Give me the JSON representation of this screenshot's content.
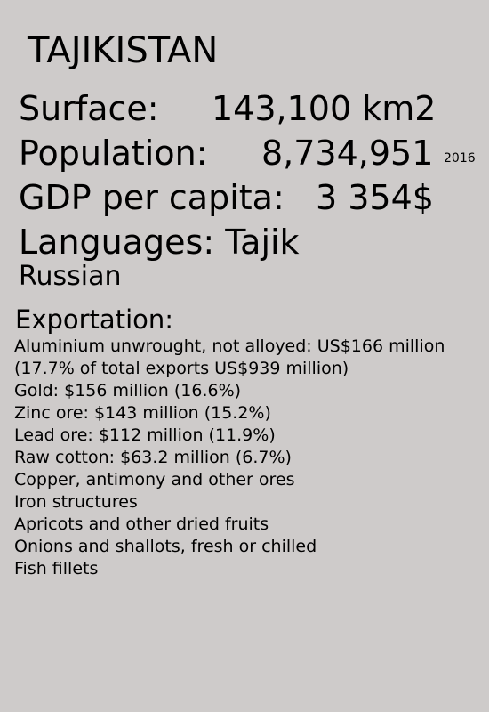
{
  "country": "TAJIKISTAN",
  "facts": {
    "surface": {
      "label": "Surface:",
      "value": "143,100 km2"
    },
    "population": {
      "label": "Population:",
      "value": "8,734,951",
      "year": "2016"
    },
    "gdp": {
      "label": "GDP per capita:",
      "value": "3 354$"
    },
    "languages": {
      "label": "Languages:",
      "items": [
        "Tajik",
        "Russian"
      ]
    }
  },
  "exports": {
    "heading": "Exportation:",
    "items": [
      "Aluminium unwrought, not alloyed: US$166 million (17.7% of total exports US$939 million)",
      "Gold: $156 million (16.6%)",
      "Zinc ore: $143 million (15.2%)",
      "Lead ore: $112 million (11.9%)",
      "Raw cotton: $63.2 million (6.7%)",
      "Copper, antimony and other ores",
      "Iron structures",
      "Apricots and other dried fruits",
      "Onions and shallots, fresh or chilled",
      "Fish fillets"
    ]
  }
}
